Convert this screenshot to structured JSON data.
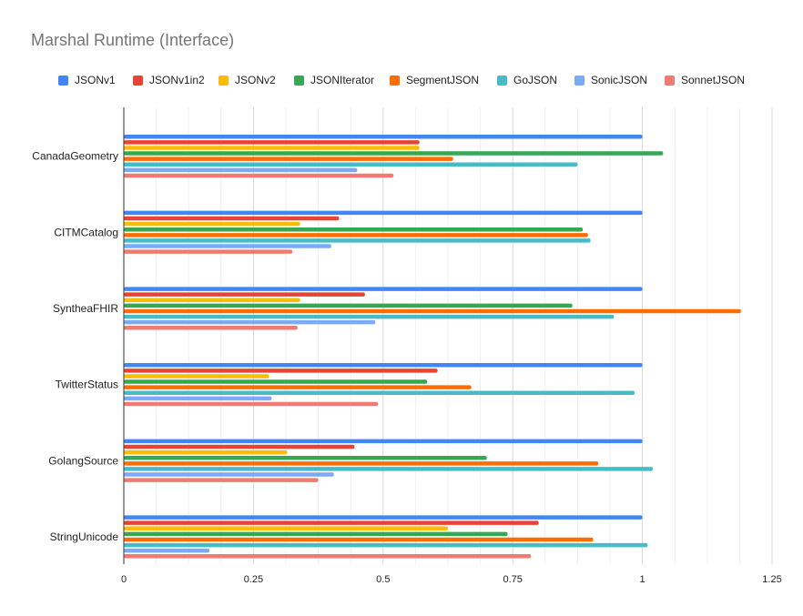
{
  "chart_data": {
    "type": "bar",
    "orientation": "horizontal",
    "title": "Marshal Runtime (Interface)",
    "xlabel": "",
    "ylabel": "",
    "xlim": [
      0,
      1.25
    ],
    "x_ticks": [
      "0",
      "0.25",
      "0.5",
      "0.75",
      "1",
      "1.25"
    ],
    "grid": true,
    "legend_position": "top",
    "categories": [
      "CanadaGeometry",
      "CITMCatalog",
      "SyntheaFHIR",
      "TwitterStatus",
      "GolangSource",
      "StringUnicode"
    ],
    "series": [
      {
        "name": "JSONv1",
        "color": "#4285f4",
        "values": [
          1.0,
          1.0,
          1.0,
          1.0,
          1.0,
          1.0
        ]
      },
      {
        "name": "JSONv1in2",
        "color": "#ea4335",
        "values": [
          0.57,
          0.415,
          0.465,
          0.605,
          0.445,
          0.8
        ]
      },
      {
        "name": "JSONv2",
        "color": "#fbbc04",
        "values": [
          0.57,
          0.34,
          0.34,
          0.28,
          0.315,
          0.625
        ]
      },
      {
        "name": "JSONIterator",
        "color": "#34a853",
        "values": [
          1.04,
          0.885,
          0.865,
          0.585,
          0.7,
          0.74
        ]
      },
      {
        "name": "SegmentJSON",
        "color": "#ff6d01",
        "values": [
          0.635,
          0.895,
          1.19,
          0.67,
          0.915,
          0.905
        ]
      },
      {
        "name": "GoJSON",
        "color": "#46bdc6",
        "values": [
          0.875,
          0.9,
          0.945,
          0.985,
          1.02,
          1.01
        ]
      },
      {
        "name": "SonicJSON",
        "color": "#7baaf7",
        "values": [
          0.45,
          0.4,
          0.485,
          0.285,
          0.405,
          0.165
        ]
      },
      {
        "name": "SonnetJSON",
        "color": "#f07b72",
        "values": [
          0.52,
          0.325,
          0.335,
          0.49,
          0.375,
          0.785
        ]
      }
    ]
  }
}
